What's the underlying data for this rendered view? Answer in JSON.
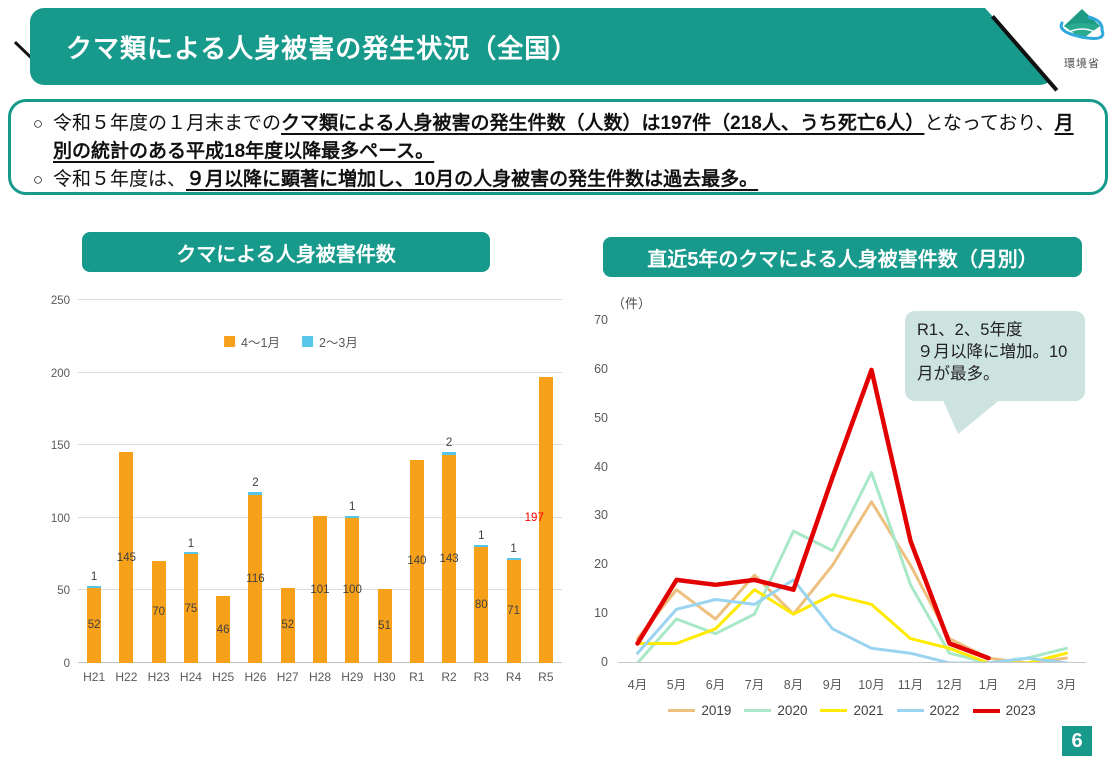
{
  "header": {
    "title": "クマ類による人身被害の発生状況（全国）",
    "logo_caption": "環境省"
  },
  "summary": {
    "marker": "○",
    "bullets": [
      {
        "segments": [
          {
            "text": "令和５年度の１月末までの",
            "em": false
          },
          {
            "text": "クマ類による人身被害の発生件数（人数）は197件（218人、うち死亡6人）",
            "em": true
          },
          {
            "text": "となっており、",
            "em": false
          },
          {
            "text": "月別の統計のある平成18年度以降最多ペース。",
            "em": true
          }
        ]
      },
      {
        "segments": [
          {
            "text": "令和５年度は、",
            "em": false
          },
          {
            "text": "９月以降に顕著に増加し、10月の人身被害の発生件数は過去最多。",
            "em": true
          }
        ]
      }
    ]
  },
  "chart_data": [
    {
      "type": "bar",
      "title": "クマによる人身被害件数",
      "categories": [
        "H21",
        "H22",
        "H23",
        "H24",
        "H25",
        "H26",
        "H27",
        "H28",
        "H29",
        "H30",
        "R1",
        "R2",
        "R3",
        "R4",
        "R5"
      ],
      "series": [
        {
          "name": "4～1月",
          "color": "#f7a11a",
          "values": [
            52,
            145,
            70,
            75,
            46,
            116,
            52,
            101,
            100,
            51,
            140,
            143,
            80,
            71,
            197
          ]
        },
        {
          "name": "2～3月",
          "color": "#56c5e8",
          "values": [
            1,
            0,
            0,
            1,
            0,
            2,
            0,
            0,
            1,
            0,
            0,
            2,
            1,
            1,
            0
          ]
        }
      ],
      "ylim": [
        0,
        250
      ],
      "yticks": [
        0,
        50,
        100,
        150,
        200,
        250
      ],
      "grid": true,
      "legend_position": "top",
      "highlight_label": {
        "category": "R5",
        "value": 197,
        "color": "#ff0000"
      }
    },
    {
      "type": "line",
      "title": "直近5年のクマによる人身被害件数（月別）",
      "unit_label": "（件）",
      "categories": [
        "4月",
        "5月",
        "6月",
        "7月",
        "8月",
        "9月",
        "10月",
        "11月",
        "12月",
        "1月",
        "2月",
        "3月"
      ],
      "series": [
        {
          "name": "2019",
          "color": "#edc080",
          "values": [
            5,
            15,
            9,
            18,
            10,
            20,
            33,
            20,
            5,
            1,
            0,
            1
          ]
        },
        {
          "name": "2020",
          "color": "#a8e8c6",
          "values": [
            0,
            9,
            6,
            10,
            27,
            23,
            39,
            16,
            2,
            0,
            1,
            3
          ]
        },
        {
          "name": "2021",
          "color": "#ffea00",
          "values": [
            4,
            4,
            7,
            15,
            10,
            14,
            12,
            5,
            3,
            0,
            0,
            2
          ]
        },
        {
          "name": "2022",
          "color": "#9ad4f0",
          "values": [
            2,
            11,
            13,
            12,
            17,
            7,
            3,
            2,
            0,
            0,
            1,
            0
          ]
        },
        {
          "name": "2023",
          "color": "#e30000",
          "values": [
            4,
            17,
            16,
            17,
            15,
            38,
            60,
            25,
            4,
            1,
            null,
            null
          ],
          "thick": true
        }
      ],
      "ylim": [
        0,
        70
      ],
      "yticks": [
        0,
        10,
        20,
        30,
        40,
        50,
        60,
        70
      ],
      "grid": false,
      "legend_position": "bottom",
      "annotation": "R1、2、5年度\n９月以降に増加。10月が最多。"
    }
  ],
  "page_number": "6",
  "colors": {
    "accent_teal": "#17998b",
    "callout_bg": "#cde3e0",
    "bar_orange": "#f7a11a",
    "cap_blue": "#56c5e8",
    "highlight_red": "#ff0000"
  }
}
